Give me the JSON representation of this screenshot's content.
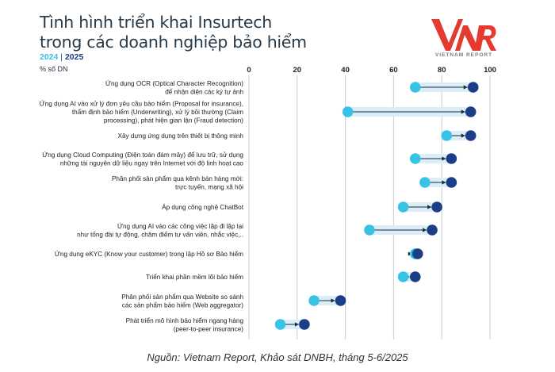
{
  "header": {
    "title_line1": "Tình hình triển khai Insurtech",
    "title_line2": "trong các doanh nghiệp bảo hiểm",
    "year_a": "2024",
    "separator": "|",
    "year_b": "2025",
    "unit": "% số DN"
  },
  "logo": {
    "mark": "VNR",
    "text": "VIETNAM REPORT"
  },
  "source": "Nguồn: Vietnam Report, Khảo sát DNBH, tháng 5-6/2025",
  "colors": {
    "y2024": "#38c3e6",
    "y2025": "#1a3f86",
    "band": "#dbeef8",
    "logo_red": "#e53a2f",
    "grid": "#c8ced6"
  },
  "chart_data": {
    "type": "dumbbell",
    "series": [
      {
        "name": "2024",
        "values": [
          69,
          41,
          82,
          69,
          73,
          64,
          50,
          69,
          64,
          27,
          13
        ]
      },
      {
        "name": "2025",
        "values": [
          93,
          92,
          92,
          84,
          84,
          78,
          76,
          70,
          69,
          38,
          23
        ]
      }
    ],
    "categories": [
      [
        "Ứng dụng OCR (Optical Character Recognition)",
        "để nhận diện các ký tự ảnh"
      ],
      [
        "Ứng dụng AI vào xử lý đơn yêu cầu bảo hiểm (Proposal for insurance),",
        "thẩm định bảo hiểm (Underwriting), xử lý bồi thường (Claim",
        "processing), phát hiện gian lận (Fraud detection)"
      ],
      [
        "Xây dựng ứng dụng trên thiết bị thông minh"
      ],
      [
        "Ứng dụng Cloud Computing (Điện toán đám mây) để lưu trữ, sử dụng",
        "những tài nguyên dữ liệu ngay trên Internet với độ linh hoạt cao"
      ],
      [
        "Phân phối sản phẩm qua kênh bán hàng mới:",
        "trực tuyến, mạng xã hội"
      ],
      [
        "Áp dụng công nghệ ChatBot"
      ],
      [
        "Ứng dụng AI vào các công việc lặp đi lặp lại",
        "như tổng đài tự động, chăm điểm tư vấn viên, nhắc việc,.."
      ],
      [
        "Ứng dụng eKYC (Know your customer) trong lập Hồ sơ Bảo hiểm"
      ],
      [
        "Triển khai phần mềm lõi bảo hiểm"
      ],
      [
        "Phân phối sản phẩm qua Website so sánh",
        "các sản phẩm bảo hiểm (Web aggregator)"
      ],
      [
        "Phát triển mô hình bảo hiểm ngang hàng",
        "(peer-to-peer insurance)"
      ]
    ],
    "xticks": [
      "0",
      "20",
      "40",
      "60",
      "80",
      "100"
    ],
    "xlim": [
      0,
      100
    ],
    "grid": true,
    "legend": "top-left"
  }
}
